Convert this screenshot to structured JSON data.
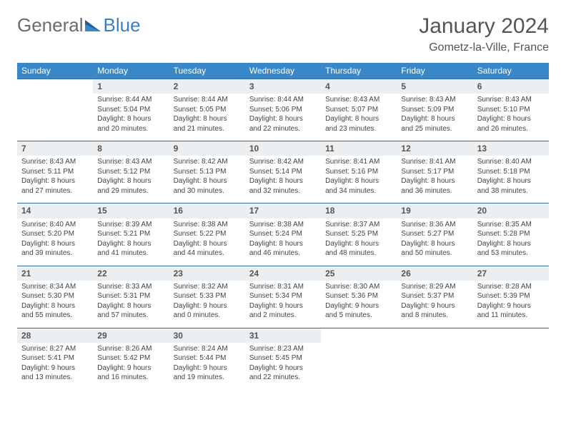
{
  "logo": {
    "text1": "General",
    "text2": "Blue"
  },
  "title": "January 2024",
  "location": "Gometz-la-Ville, France",
  "colors": {
    "header_bg": "#3a87c7",
    "header_text": "#ffffff",
    "daynum_bg": "#eceff1",
    "row_border": "#2f6da3",
    "logo_gray": "#6b6b6b",
    "logo_blue": "#3a7fc4"
  },
  "weekdays": [
    "Sunday",
    "Monday",
    "Tuesday",
    "Wednesday",
    "Thursday",
    "Friday",
    "Saturday"
  ],
  "weeks": [
    {
      "nums": [
        "",
        "1",
        "2",
        "3",
        "4",
        "5",
        "6"
      ],
      "cells": [
        null,
        {
          "sunrise": "Sunrise: 8:44 AM",
          "sunset": "Sunset: 5:04 PM",
          "daylight": "Daylight: 8 hours and 20 minutes."
        },
        {
          "sunrise": "Sunrise: 8:44 AM",
          "sunset": "Sunset: 5:05 PM",
          "daylight": "Daylight: 8 hours and 21 minutes."
        },
        {
          "sunrise": "Sunrise: 8:44 AM",
          "sunset": "Sunset: 5:06 PM",
          "daylight": "Daylight: 8 hours and 22 minutes."
        },
        {
          "sunrise": "Sunrise: 8:43 AM",
          "sunset": "Sunset: 5:07 PM",
          "daylight": "Daylight: 8 hours and 23 minutes."
        },
        {
          "sunrise": "Sunrise: 8:43 AM",
          "sunset": "Sunset: 5:09 PM",
          "daylight": "Daylight: 8 hours and 25 minutes."
        },
        {
          "sunrise": "Sunrise: 8:43 AM",
          "sunset": "Sunset: 5:10 PM",
          "daylight": "Daylight: 8 hours and 26 minutes."
        }
      ]
    },
    {
      "nums": [
        "7",
        "8",
        "9",
        "10",
        "11",
        "12",
        "13"
      ],
      "cells": [
        {
          "sunrise": "Sunrise: 8:43 AM",
          "sunset": "Sunset: 5:11 PM",
          "daylight": "Daylight: 8 hours and 27 minutes."
        },
        {
          "sunrise": "Sunrise: 8:43 AM",
          "sunset": "Sunset: 5:12 PM",
          "daylight": "Daylight: 8 hours and 29 minutes."
        },
        {
          "sunrise": "Sunrise: 8:42 AM",
          "sunset": "Sunset: 5:13 PM",
          "daylight": "Daylight: 8 hours and 30 minutes."
        },
        {
          "sunrise": "Sunrise: 8:42 AM",
          "sunset": "Sunset: 5:14 PM",
          "daylight": "Daylight: 8 hours and 32 minutes."
        },
        {
          "sunrise": "Sunrise: 8:41 AM",
          "sunset": "Sunset: 5:16 PM",
          "daylight": "Daylight: 8 hours and 34 minutes."
        },
        {
          "sunrise": "Sunrise: 8:41 AM",
          "sunset": "Sunset: 5:17 PM",
          "daylight": "Daylight: 8 hours and 36 minutes."
        },
        {
          "sunrise": "Sunrise: 8:40 AM",
          "sunset": "Sunset: 5:18 PM",
          "daylight": "Daylight: 8 hours and 38 minutes."
        }
      ]
    },
    {
      "nums": [
        "14",
        "15",
        "16",
        "17",
        "18",
        "19",
        "20"
      ],
      "cells": [
        {
          "sunrise": "Sunrise: 8:40 AM",
          "sunset": "Sunset: 5:20 PM",
          "daylight": "Daylight: 8 hours and 39 minutes."
        },
        {
          "sunrise": "Sunrise: 8:39 AM",
          "sunset": "Sunset: 5:21 PM",
          "daylight": "Daylight: 8 hours and 41 minutes."
        },
        {
          "sunrise": "Sunrise: 8:38 AM",
          "sunset": "Sunset: 5:22 PM",
          "daylight": "Daylight: 8 hours and 44 minutes."
        },
        {
          "sunrise": "Sunrise: 8:38 AM",
          "sunset": "Sunset: 5:24 PM",
          "daylight": "Daylight: 8 hours and 46 minutes."
        },
        {
          "sunrise": "Sunrise: 8:37 AM",
          "sunset": "Sunset: 5:25 PM",
          "daylight": "Daylight: 8 hours and 48 minutes."
        },
        {
          "sunrise": "Sunrise: 8:36 AM",
          "sunset": "Sunset: 5:27 PM",
          "daylight": "Daylight: 8 hours and 50 minutes."
        },
        {
          "sunrise": "Sunrise: 8:35 AM",
          "sunset": "Sunset: 5:28 PM",
          "daylight": "Daylight: 8 hours and 53 minutes."
        }
      ]
    },
    {
      "nums": [
        "21",
        "22",
        "23",
        "24",
        "25",
        "26",
        "27"
      ],
      "cells": [
        {
          "sunrise": "Sunrise: 8:34 AM",
          "sunset": "Sunset: 5:30 PM",
          "daylight": "Daylight: 8 hours and 55 minutes."
        },
        {
          "sunrise": "Sunrise: 8:33 AM",
          "sunset": "Sunset: 5:31 PM",
          "daylight": "Daylight: 8 hours and 57 minutes."
        },
        {
          "sunrise": "Sunrise: 8:32 AM",
          "sunset": "Sunset: 5:33 PM",
          "daylight": "Daylight: 9 hours and 0 minutes."
        },
        {
          "sunrise": "Sunrise: 8:31 AM",
          "sunset": "Sunset: 5:34 PM",
          "daylight": "Daylight: 9 hours and 2 minutes."
        },
        {
          "sunrise": "Sunrise: 8:30 AM",
          "sunset": "Sunset: 5:36 PM",
          "daylight": "Daylight: 9 hours and 5 minutes."
        },
        {
          "sunrise": "Sunrise: 8:29 AM",
          "sunset": "Sunset: 5:37 PM",
          "daylight": "Daylight: 9 hours and 8 minutes."
        },
        {
          "sunrise": "Sunrise: 8:28 AM",
          "sunset": "Sunset: 5:39 PM",
          "daylight": "Daylight: 9 hours and 11 minutes."
        }
      ]
    },
    {
      "nums": [
        "28",
        "29",
        "30",
        "31",
        "",
        "",
        ""
      ],
      "cells": [
        {
          "sunrise": "Sunrise: 8:27 AM",
          "sunset": "Sunset: 5:41 PM",
          "daylight": "Daylight: 9 hours and 13 minutes."
        },
        {
          "sunrise": "Sunrise: 8:26 AM",
          "sunset": "Sunset: 5:42 PM",
          "daylight": "Daylight: 9 hours and 16 minutes."
        },
        {
          "sunrise": "Sunrise: 8:24 AM",
          "sunset": "Sunset: 5:44 PM",
          "daylight": "Daylight: 9 hours and 19 minutes."
        },
        {
          "sunrise": "Sunrise: 8:23 AM",
          "sunset": "Sunset: 5:45 PM",
          "daylight": "Daylight: 9 hours and 22 minutes."
        },
        null,
        null,
        null
      ]
    }
  ]
}
